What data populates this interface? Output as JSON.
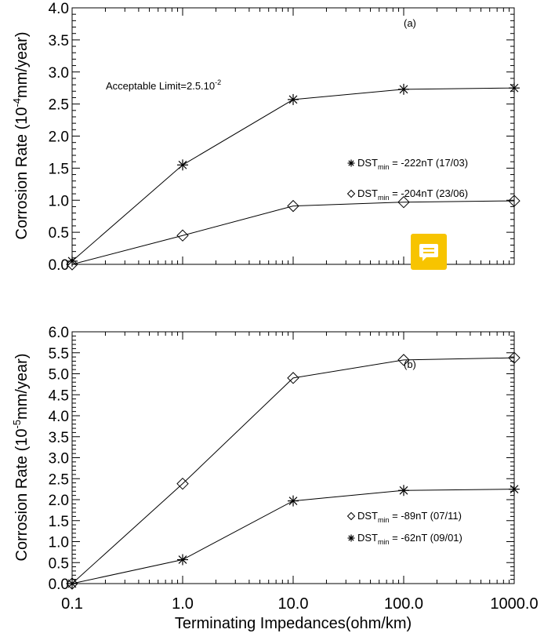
{
  "chart_data": [
    {
      "type": "line",
      "panel_label": "(a)",
      "ylabel": "Corrosion Rate (10",
      "ylabel_exp": "-4",
      "ylabel_tail": "mm/year)",
      "log_x": true,
      "xlim": [
        0.1,
        1000
      ],
      "ylim": [
        0,
        4.0
      ],
      "y_ticks": [
        "0.0",
        "0.5",
        "1.0",
        "1.5",
        "2.0",
        "2.5",
        "3.0",
        "3.5",
        "4.0"
      ],
      "annotation": "Acceptable Limit=2.5.10",
      "annotation_exp": "-2",
      "x": [
        0.1,
        1,
        10,
        100,
        1000
      ],
      "series": [
        {
          "name": "DST",
          "name_sub": "min",
          "name_tail": " = -222nT (17/03)",
          "marker": "asterisk",
          "values": [
            0.05,
            1.55,
            2.57,
            2.73,
            2.75
          ]
        },
        {
          "name": "DST",
          "name_sub": "min",
          "name_tail": " = -204nT (23/06)",
          "marker": "diamond",
          "values": [
            0.0,
            0.45,
            0.91,
            0.97,
            0.99
          ]
        }
      ]
    },
    {
      "type": "line",
      "panel_label": "(b)",
      "ylabel": "Corrosion Rate (10",
      "ylabel_exp": "-5",
      "ylabel_tail": "mm/year)",
      "log_x": true,
      "xlim": [
        0.1,
        1000
      ],
      "ylim": [
        0,
        6.0
      ],
      "y_ticks": [
        "0.0",
        "0.5",
        "1.0",
        "1.5",
        "2.0",
        "2.5",
        "3.0",
        "3.5",
        "4.0",
        "4.5",
        "5.0",
        "5.5",
        "6.0"
      ],
      "x": [
        0.1,
        1,
        10,
        100,
        1000
      ],
      "series": [
        {
          "name": "DST",
          "name_sub": "min",
          "name_tail": " = -89nT (07/11)",
          "marker": "diamond",
          "values": [
            0.0,
            2.38,
            4.9,
            5.33,
            5.38
          ]
        },
        {
          "name": "DST",
          "name_sub": "min",
          "name_tail": " = -62nT (09/01)",
          "marker": "asterisk",
          "values": [
            0.0,
            0.57,
            1.97,
            2.22,
            2.25
          ]
        }
      ]
    }
  ],
  "x_tick_labels": [
    "0.1",
    "1.0",
    "10.0",
    "100.0",
    "1000.0"
  ],
  "xlabel": "Terminating Impedances(ohm/km)",
  "note_button_icon": "comment-icon",
  "accent_color": "#f7c400"
}
